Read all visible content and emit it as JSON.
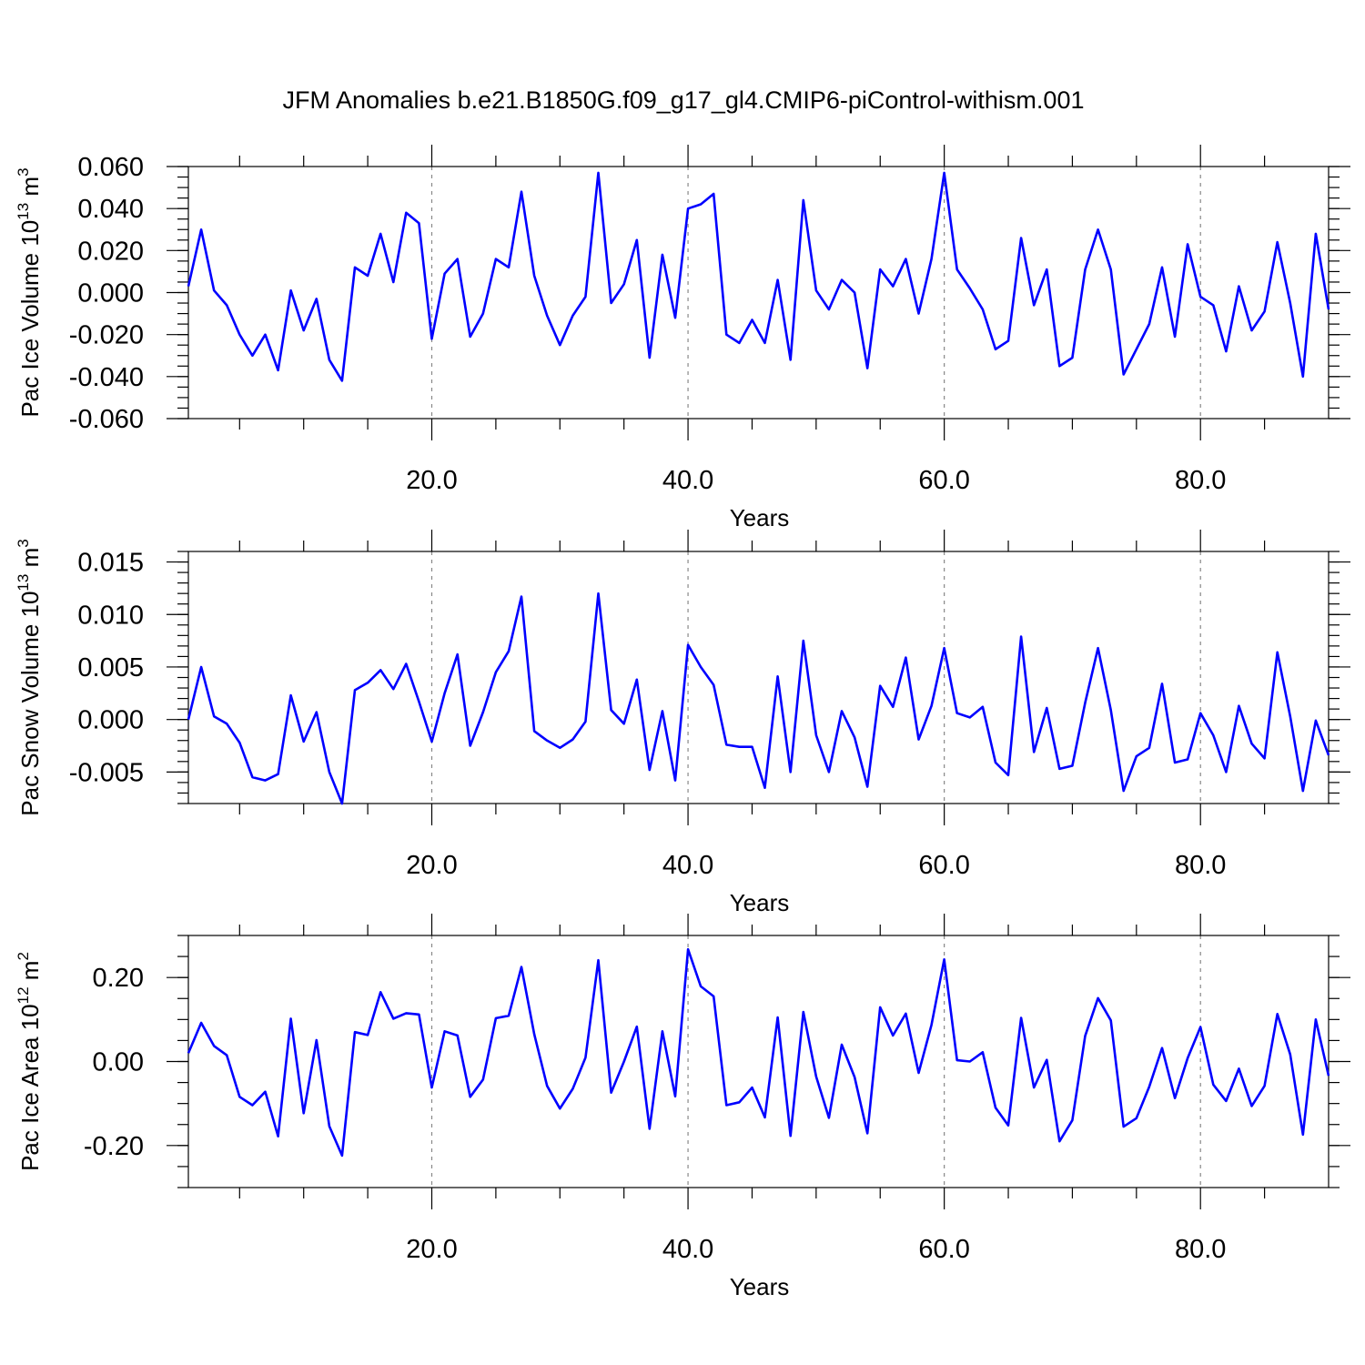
{
  "title": "JFM Anomalies b.e21.B1850G.f09_g17_gl4.CMIP6-piControl-withism.001",
  "colors": {
    "series": "#0000ff",
    "frame": "#000000",
    "grid": "#888888"
  },
  "chart_data": [
    {
      "type": "line",
      "ylabel_main": "Pac Ice Volume 10",
      "ylabel_exp": "13",
      "ylabel_unit": " m",
      "ylabel_unit_exp": "3",
      "xlabel": "Years",
      "xlim": [
        1,
        90
      ],
      "ylim": [
        -0.06,
        0.06
      ],
      "xticks": [
        20,
        40,
        60,
        80
      ],
      "xtick_labels": [
        "20.0",
        "40.0",
        "60.0",
        "80.0"
      ],
      "yticks": [
        -0.06,
        -0.04,
        -0.02,
        0.0,
        0.02,
        0.04,
        0.06
      ],
      "ytick_labels": [
        "-0.060",
        "-0.040",
        "-0.020",
        "0.000",
        "0.020",
        "0.040",
        "0.060"
      ],
      "yminor": 0.005,
      "xminor": 5,
      "grid": "x-major dashed",
      "values": [
        0.003,
        0.03,
        0.001,
        -0.006,
        -0.02,
        -0.03,
        -0.02,
        -0.037,
        0.001,
        -0.018,
        -0.003,
        -0.032,
        -0.042,
        0.012,
        0.008,
        0.028,
        0.005,
        0.038,
        0.033,
        -0.022,
        0.009,
        0.016,
        -0.021,
        -0.01,
        0.016,
        0.012,
        0.048,
        0.008,
        -0.011,
        -0.025,
        -0.011,
        -0.002,
        0.057,
        -0.005,
        0.004,
        0.025,
        -0.031,
        0.018,
        -0.012,
        0.04,
        0.042,
        0.047,
        -0.02,
        -0.024,
        -0.013,
        -0.024,
        0.006,
        -0.032,
        0.044,
        0.001,
        -0.008,
        0.006,
        0.0,
        -0.036,
        0.011,
        0.003,
        0.016,
        -0.01,
        0.016,
        0.057,
        0.011,
        0.002,
        -0.008,
        -0.027,
        -0.023,
        0.026,
        -0.006,
        0.011,
        -0.035,
        -0.031,
        0.011,
        0.03,
        0.011,
        -0.039,
        -0.027,
        -0.015,
        0.012,
        -0.021,
        0.023,
        -0.002,
        -0.006,
        -0.028,
        0.003,
        -0.018,
        -0.009,
        0.024,
        -0.005,
        -0.04,
        0.028,
        -0.008
      ]
    },
    {
      "type": "line",
      "ylabel_main": "Pac Snow Volume 10",
      "ylabel_exp": "13",
      "ylabel_unit": " m",
      "ylabel_unit_exp": "3",
      "xlabel": "Years",
      "xlim": [
        1,
        90
      ],
      "ylim": [
        -0.008,
        0.016
      ],
      "xticks": [
        20,
        40,
        60,
        80
      ],
      "xtick_labels": [
        "20.0",
        "40.0",
        "60.0",
        "80.0"
      ],
      "yticks": [
        -0.005,
        0.0,
        0.005,
        0.01,
        0.015
      ],
      "ytick_labels": [
        "-0.005",
        "0.000",
        "0.005",
        "0.010",
        "0.015"
      ],
      "yminor": 0.001,
      "xminor": 5,
      "grid": "x-major dashed",
      "values": [
        0.0,
        0.005,
        0.0003,
        -0.0004,
        -0.0022,
        -0.0055,
        -0.0058,
        -0.0052,
        0.0023,
        -0.0021,
        0.0007,
        -0.005,
        -0.008,
        0.0028,
        0.0035,
        0.0047,
        0.0029,
        0.0053,
        0.0017,
        -0.0021,
        0.0025,
        0.0062,
        -0.0025,
        0.0007,
        0.0045,
        0.0065,
        0.0117,
        -0.0011,
        -0.002,
        -0.0027,
        -0.0019,
        -0.0002,
        0.012,
        0.0009,
        -0.0004,
        0.0038,
        -0.0048,
        0.0008,
        -0.0058,
        0.0071,
        0.005,
        0.0033,
        -0.0024,
        -0.0026,
        -0.0026,
        -0.0065,
        0.0041,
        -0.005,
        0.0075,
        -0.0015,
        -0.005,
        0.0008,
        -0.0017,
        -0.0064,
        0.0032,
        0.0012,
        0.0059,
        -0.0019,
        0.0013,
        0.0068,
        0.0006,
        0.0002,
        0.0012,
        -0.0041,
        -0.0053,
        0.0079,
        -0.0031,
        0.0011,
        -0.0047,
        -0.0044,
        0.0016,
        0.0068,
        0.0009,
        -0.0068,
        -0.0035,
        -0.0027,
        0.0034,
        -0.0041,
        -0.0038,
        0.0006,
        -0.0015,
        -0.005,
        0.0013,
        -0.0023,
        -0.0037,
        0.0064,
        0.0003,
        -0.0068,
        -0.0001,
        -0.0034
      ]
    },
    {
      "type": "line",
      "ylabel_main": "Pac Ice Area 10",
      "ylabel_exp": "12",
      "ylabel_unit": " m",
      "ylabel_unit_exp": "2",
      "xlabel": "Years",
      "xlim": [
        1,
        90
      ],
      "ylim": [
        -0.3,
        0.3
      ],
      "xticks": [
        20,
        40,
        60,
        80
      ],
      "xtick_labels": [
        "20.0",
        "40.0",
        "60.0",
        "80.0"
      ],
      "yticks": [
        -0.2,
        0.0,
        0.2
      ],
      "ytick_labels": [
        "-0.20",
        "0.00",
        "0.20"
      ],
      "yminor": 0.05,
      "xminor": 5,
      "grid": "x-major dashed",
      "values": [
        0.02,
        0.092,
        0.037,
        0.015,
        -0.084,
        -0.104,
        -0.072,
        -0.178,
        0.102,
        -0.123,
        0.051,
        -0.154,
        -0.224,
        0.07,
        0.063,
        0.165,
        0.102,
        0.115,
        0.112,
        -0.062,
        0.072,
        0.062,
        -0.084,
        -0.043,
        0.103,
        0.109,
        0.225,
        0.065,
        -0.058,
        -0.112,
        -0.065,
        0.009,
        0.241,
        -0.074,
        0.0,
        0.083,
        -0.16,
        0.072,
        -0.083,
        0.267,
        0.179,
        0.155,
        -0.104,
        -0.097,
        -0.062,
        -0.133,
        0.105,
        -0.177,
        0.118,
        -0.036,
        -0.134,
        0.04,
        -0.037,
        -0.171,
        0.129,
        0.062,
        0.114,
        -0.027,
        0.087,
        0.243,
        0.003,
        0.0,
        0.022,
        -0.11,
        -0.152,
        0.104,
        -0.062,
        0.004,
        -0.19,
        -0.14,
        0.061,
        0.151,
        0.098,
        -0.155,
        -0.135,
        -0.06,
        0.032,
        -0.087,
        0.008,
        0.082,
        -0.055,
        -0.094,
        -0.017,
        -0.106,
        -0.058,
        0.113,
        0.017,
        -0.174,
        0.1,
        -0.034
      ]
    }
  ]
}
